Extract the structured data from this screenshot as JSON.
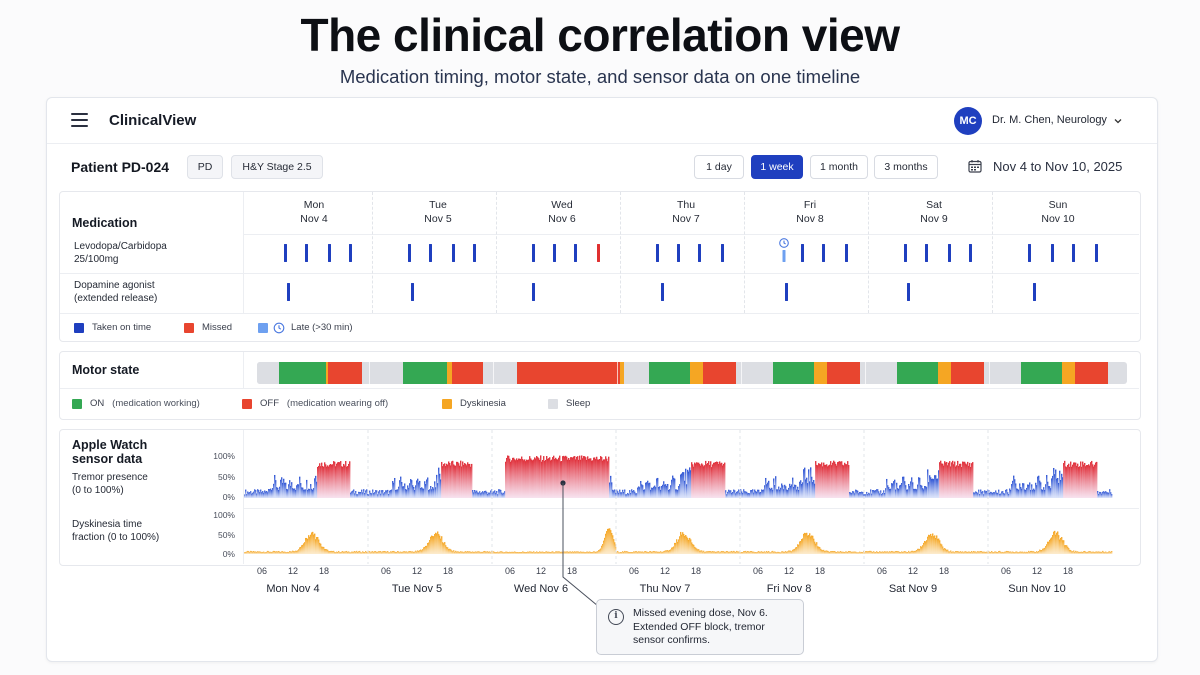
{
  "hero": {
    "title": "The clinical correlation view",
    "subtitle": "Medication timing, motor state, and sensor data on one timeline"
  },
  "topbar": {
    "brand": "ClinicalView",
    "avatar_initials": "MC",
    "user_name": "Dr. M. Chen, Neurology",
    "menu_icon": "hamburger-menu-icon",
    "user_menu_icon": "chevron-down-icon"
  },
  "patient": {
    "title": "Patient PD-024",
    "tags": [
      "PD",
      "H&Y Stage 2.5"
    ]
  },
  "range": {
    "options": [
      "1 day",
      "1 week",
      "1 month",
      "3 months"
    ],
    "active": "1 week",
    "calendar_icon": "calendar-icon",
    "date_range": "Nov 4 to Nov 10, 2025"
  },
  "days": [
    {
      "dow": "Mon",
      "date": "Nov 4",
      "label": "Mon Nov 4"
    },
    {
      "dow": "Tue",
      "date": "Nov 5",
      "label": "Tue Nov 5"
    },
    {
      "dow": "Wed",
      "date": "Nov 6",
      "label": "Wed Nov 6"
    },
    {
      "dow": "Thu",
      "date": "Nov 7",
      "label": "Thu Nov 7"
    },
    {
      "dow": "Fri",
      "date": "Nov 8",
      "label": "Fri Nov 8"
    },
    {
      "dow": "Sat",
      "date": "Nov 9",
      "label": "Sat Nov 9"
    },
    {
      "dow": "Sun",
      "date": "Nov 10",
      "label": "Sun Nov 10"
    }
  ],
  "medication": {
    "title": "Medication",
    "rows": [
      {
        "label_line1": "Levodopa/Carbidopa",
        "label_line2": "25/100mg",
        "doses": [
          {
            "day": 0,
            "hour": 7,
            "status": "taken"
          },
          {
            "day": 0,
            "hour": 11,
            "status": "taken"
          },
          {
            "day": 0,
            "hour": 15.5,
            "status": "taken"
          },
          {
            "day": 0,
            "hour": 19.5,
            "status": "taken"
          },
          {
            "day": 1,
            "hour": 7,
            "status": "taken"
          },
          {
            "day": 1,
            "hour": 11,
            "status": "taken"
          },
          {
            "day": 1,
            "hour": 15.5,
            "status": "taken"
          },
          {
            "day": 1,
            "hour": 19.5,
            "status": "taken"
          },
          {
            "day": 2,
            "hour": 7,
            "status": "taken"
          },
          {
            "day": 2,
            "hour": 11,
            "status": "taken"
          },
          {
            "day": 2,
            "hour": 15,
            "status": "taken"
          },
          {
            "day": 2,
            "hour": 19.5,
            "status": "missed"
          },
          {
            "day": 3,
            "hour": 7,
            "status": "taken"
          },
          {
            "day": 3,
            "hour": 11,
            "status": "taken"
          },
          {
            "day": 3,
            "hour": 15,
            "status": "taken"
          },
          {
            "day": 3,
            "hour": 19.5,
            "status": "taken"
          },
          {
            "day": 4,
            "hour": 7.5,
            "status": "late"
          },
          {
            "day": 4,
            "hour": 11,
            "status": "taken"
          },
          {
            "day": 4,
            "hour": 15,
            "status": "taken"
          },
          {
            "day": 4,
            "hour": 19.5,
            "status": "taken"
          },
          {
            "day": 5,
            "hour": 7,
            "status": "taken"
          },
          {
            "day": 5,
            "hour": 11,
            "status": "taken"
          },
          {
            "day": 5,
            "hour": 15.5,
            "status": "taken"
          },
          {
            "day": 5,
            "hour": 19.5,
            "status": "taken"
          },
          {
            "day": 6,
            "hour": 7,
            "status": "taken"
          },
          {
            "day": 6,
            "hour": 11.5,
            "status": "taken"
          },
          {
            "day": 6,
            "hour": 15.5,
            "status": "taken"
          },
          {
            "day": 6,
            "hour": 20,
            "status": "taken"
          }
        ]
      },
      {
        "label_line1": "Dopamine agonist",
        "label_line2": "(extended release)",
        "doses": [
          {
            "day": 0,
            "hour": 7.5,
            "status": "taken"
          },
          {
            "day": 1,
            "hour": 7.5,
            "status": "taken"
          },
          {
            "day": 2,
            "hour": 7,
            "status": "taken"
          },
          {
            "day": 3,
            "hour": 8,
            "status": "taken"
          },
          {
            "day": 4,
            "hour": 8,
            "status": "taken"
          },
          {
            "day": 5,
            "hour": 7.5,
            "status": "taken"
          },
          {
            "day": 6,
            "hour": 8,
            "status": "taken"
          }
        ]
      }
    ],
    "legend": {
      "taken": "Taken on time",
      "missed": "Missed",
      "late": "Late (>30 min)",
      "late_icon": "clock-icon"
    },
    "colors": {
      "taken": "#1f3fbf",
      "missed": "#e03030",
      "late": "#6ea0f0"
    }
  },
  "motor": {
    "title": "Motor state",
    "segments": [
      {
        "day": 0,
        "start": 0,
        "end": 4.5,
        "state": "sleep"
      },
      {
        "day": 0,
        "start": 4.5,
        "end": 13.5,
        "state": "on"
      },
      {
        "day": 0,
        "start": 13.5,
        "end": 14,
        "state": "dyskinesia"
      },
      {
        "day": 0,
        "start": 14,
        "end": 20.5,
        "state": "off"
      },
      {
        "day": 0,
        "start": 20.5,
        "end": 24,
        "state": "sleep"
      },
      {
        "day": 1,
        "start": 0,
        "end": 4.5,
        "state": "sleep"
      },
      {
        "day": 1,
        "start": 4.5,
        "end": 13,
        "state": "on"
      },
      {
        "day": 1,
        "start": 13,
        "end": 14,
        "state": "dyskinesia"
      },
      {
        "day": 1,
        "start": 14,
        "end": 20,
        "state": "off"
      },
      {
        "day": 1,
        "start": 20,
        "end": 24,
        "state": "sleep"
      },
      {
        "day": 2,
        "start": 0,
        "end": 2.5,
        "state": "sleep"
      },
      {
        "day": 2,
        "start": 2.5,
        "end": 22.5,
        "state": "off"
      },
      {
        "day": 2,
        "start": 22.5,
        "end": 23.2,
        "state": "dyskinesia"
      },
      {
        "day": 2,
        "start": 23.2,
        "end": 24,
        "state": "sleep"
      },
      {
        "day": 3,
        "start": 0,
        "end": 4,
        "state": "sleep"
      },
      {
        "day": 3,
        "start": 4,
        "end": 12,
        "state": "on"
      },
      {
        "day": 3,
        "start": 12,
        "end": 14.5,
        "state": "dyskinesia"
      },
      {
        "day": 3,
        "start": 14.5,
        "end": 21,
        "state": "off"
      },
      {
        "day": 3,
        "start": 21,
        "end": 24,
        "state": "sleep"
      },
      {
        "day": 4,
        "start": 0,
        "end": 4,
        "state": "sleep"
      },
      {
        "day": 4,
        "start": 4,
        "end": 12,
        "state": "on"
      },
      {
        "day": 4,
        "start": 12,
        "end": 14.5,
        "state": "dyskinesia"
      },
      {
        "day": 4,
        "start": 14.5,
        "end": 21,
        "state": "off"
      },
      {
        "day": 4,
        "start": 21,
        "end": 24,
        "state": "sleep"
      },
      {
        "day": 5,
        "start": 0,
        "end": 4,
        "state": "sleep"
      },
      {
        "day": 5,
        "start": 4,
        "end": 12,
        "state": "on"
      },
      {
        "day": 5,
        "start": 12,
        "end": 14.5,
        "state": "dyskinesia"
      },
      {
        "day": 5,
        "start": 14.5,
        "end": 21,
        "state": "off"
      },
      {
        "day": 5,
        "start": 21,
        "end": 24,
        "state": "sleep"
      },
      {
        "day": 6,
        "start": 0,
        "end": 4,
        "state": "sleep"
      },
      {
        "day": 6,
        "start": 4,
        "end": 12,
        "state": "on"
      },
      {
        "day": 6,
        "start": 12,
        "end": 14.5,
        "state": "dyskinesia"
      },
      {
        "day": 6,
        "start": 14.5,
        "end": 21,
        "state": "off"
      },
      {
        "day": 6,
        "start": 21,
        "end": 24,
        "state": "sleep"
      }
    ],
    "legend": {
      "on": "ON",
      "on_sub": "(medication working)",
      "off": "OFF",
      "off_sub": "(medication wearing off)",
      "dyskinesia": "Dyskinesia",
      "sleep": "Sleep"
    },
    "colors": {
      "on": "#34a853",
      "off": "#e8452f",
      "dyskinesia": "#f5a623",
      "sleep": "#dcdee3"
    }
  },
  "sensor": {
    "title_line1": "Apple Watch",
    "title_line2": "sensor data",
    "tremor": {
      "label_line1": "Tremor presence",
      "label_line2": "(0 to 100%)",
      "y_ticks": [
        "100%",
        "50%",
        "0%"
      ],
      "colors": {
        "low": "#2f55d4",
        "high": "#e0303a"
      }
    },
    "dyskinesia": {
      "label_line1": "Dyskinesia time",
      "label_line2": "fraction (0 to 100%)",
      "y_ticks": [
        "100%",
        "50%",
        "0%"
      ],
      "color": "#f5a623"
    },
    "x_ticks": [
      "06",
      "12",
      "18"
    ]
  },
  "callout": {
    "text": "Missed evening dose, Nov 6. Extended OFF block, tremor sensor confirms.",
    "icon": "info-icon"
  }
}
